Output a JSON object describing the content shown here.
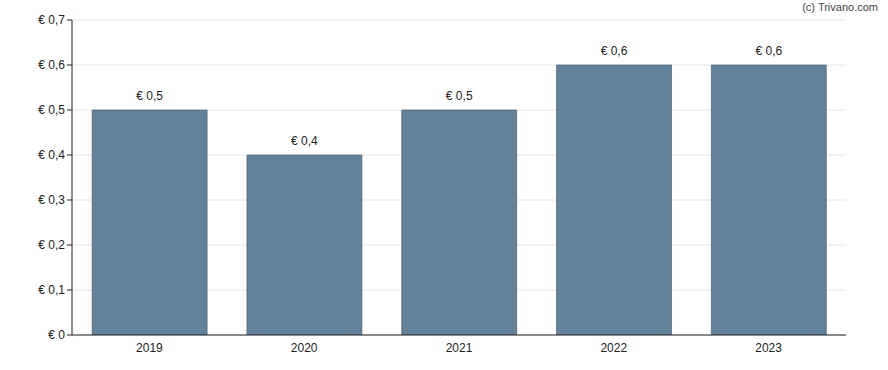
{
  "chart_data": {
    "type": "bar",
    "annotation": "(c) Trivano.com",
    "categories": [
      "2019",
      "2020",
      "2021",
      "2022",
      "2023"
    ],
    "values": [
      0.5,
      0.4,
      0.5,
      0.6,
      0.6
    ],
    "value_labels": [
      "€ 0,5",
      "€ 0,4",
      "€ 0,5",
      "€ 0,6",
      "€ 0,6"
    ],
    "data_labels": true,
    "color": "#64819a",
    "ylim": [
      0,
      0.7
    ],
    "yticks": [
      {
        "value": 0,
        "label": "€ 0"
      },
      {
        "value": 0.1,
        "label": "€ 0,1"
      },
      {
        "value": 0.2,
        "label": "€ 0,2"
      },
      {
        "value": 0.3,
        "label": "€ 0,3"
      },
      {
        "value": 0.4,
        "label": "€ 0,4"
      },
      {
        "value": 0.5,
        "label": "€ 0,5"
      },
      {
        "value": 0.6,
        "label": "€ 0,6"
      },
      {
        "value": 0.7,
        "label": "€ 0,7"
      }
    ],
    "grid": true
  }
}
